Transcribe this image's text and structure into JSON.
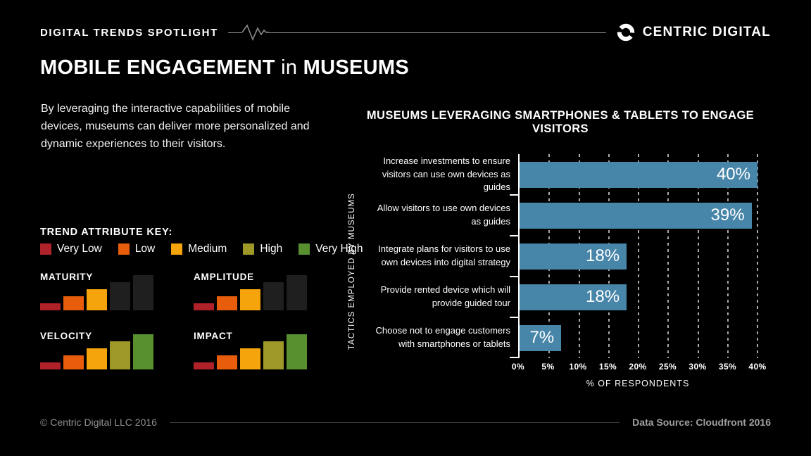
{
  "header": {
    "eyebrow": "DIGITAL TRENDS SPOTLIGHT",
    "brand": "CENTRIC DIGITAL"
  },
  "title": {
    "part1": "MOBILE ENGAGEMENT",
    "connector": " in ",
    "part2": "MUSEUMS"
  },
  "intro": "By leveraging the interactive capabilities of mobile devices, museums can deliver more personalized and dynamic experiences to their visitors.",
  "trend_key": {
    "title": "TREND ATTRIBUTE KEY:",
    "levels": [
      {
        "label": "Very Low",
        "color": "#b0222a"
      },
      {
        "label": "Low",
        "color": "#e85d0b"
      },
      {
        "label": "Medium",
        "color": "#f6a40c"
      },
      {
        "label": "High",
        "color": "#9d9827"
      },
      {
        "label": "Very High",
        "color": "#58902f"
      }
    ],
    "unfilled_color": "#1f1f1f",
    "attributes": [
      {
        "name": "MATURITY",
        "value": "Medium",
        "filled": 3
      },
      {
        "name": "AMPLITUDE",
        "value": "Medium",
        "filled": 3
      },
      {
        "name": "VELOCITY",
        "value": "Very High",
        "filled": 5
      },
      {
        "name": "IMPACT",
        "value": "Very High",
        "filled": 5
      }
    ]
  },
  "chart_data": {
    "type": "bar",
    "orientation": "horizontal",
    "title": "MUSEUMS LEVERAGING SMARTPHONES & TABLETS TO ENGAGE VISITORS",
    "categories": [
      "Increase investments to ensure visitors can use own devices as guides",
      "Allow visitors to use own devices as guides",
      "Integrate plans for visitors to use own devices into digital strategy",
      "Provide rented device which will provide guided tour",
      "Choose not to engage customers with smartphones or tablets"
    ],
    "values": [
      40,
      39,
      18,
      18,
      7
    ],
    "value_labels": [
      "40%",
      "39%",
      "18%",
      "18%",
      "7%"
    ],
    "xlabel": "% OF RESPONDENTS",
    "ylabel": "TACTICS EMPLOYED BY MUSEUMS",
    "xlim": [
      0,
      40
    ],
    "xticks": [
      "0%",
      "5%",
      "10%",
      "15%",
      "20%",
      "25%",
      "30%",
      "35%",
      "40%"
    ],
    "xtick_values": [
      0,
      5,
      10,
      15,
      20,
      25,
      30,
      35,
      40
    ],
    "bar_color": "#4785a9",
    "grid": "dashed-vertical"
  },
  "footer": {
    "left": "© Centric Digital LLC 2016",
    "right": "Data Source: Cloudfront 2016"
  }
}
